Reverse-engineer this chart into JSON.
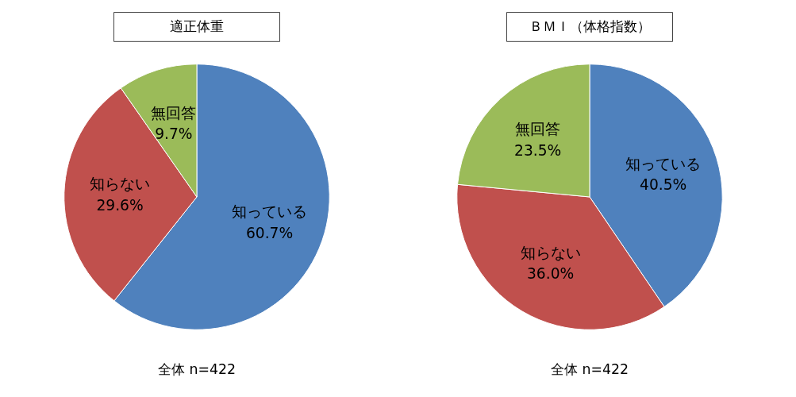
{
  "chart_data": [
    {
      "type": "pie",
      "title": "適正体重",
      "categories": [
        "知っている",
        "知らない",
        "無回答"
      ],
      "values": [
        60.7,
        29.6,
        9.7
      ],
      "value_labels": [
        "60.7%",
        "29.6%",
        "9.7%"
      ],
      "colors": [
        "#4f81bd",
        "#c0504d",
        "#9bbb59"
      ],
      "legend": false,
      "annotations": [
        "全体 n=422"
      ]
    },
    {
      "type": "pie",
      "title": "ＢＭＩ（体格指数）",
      "categories": [
        "知っている",
        "知らない",
        "無回答"
      ],
      "values": [
        40.5,
        36.0,
        23.5
      ],
      "value_labels": [
        "40.5%",
        "36.0%",
        "23.5%"
      ],
      "colors": [
        "#4f81bd",
        "#c0504d",
        "#9bbb59"
      ],
      "legend": false,
      "annotations": [
        "全体 n=422"
      ]
    }
  ]
}
